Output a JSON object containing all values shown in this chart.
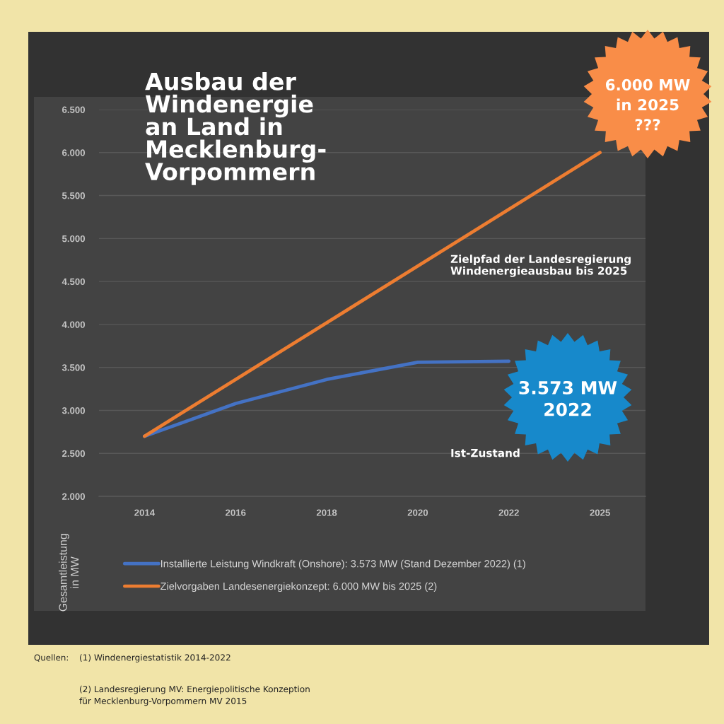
{
  "chart_data": {
    "type": "line",
    "title": "Ausbau der\nWindenergie\nan Land in\nMecklenburg-\nVorpommern",
    "ylabel": "Gesamtleistung\nin MW",
    "categories": [
      "2014",
      "2016",
      "2018",
      "2020",
      "2022",
      "2025"
    ],
    "series": [
      {
        "name": "Installierte Leistung Windkraft (Onshore): 3.573 MW (Stand Dezember 2022) (1)",
        "color": "#4472c4",
        "values": [
          2700,
          3080,
          3360,
          3560,
          3573,
          null
        ]
      },
      {
        "name": "Zielvorgaben Landesenergiekonzept: 6.000 MW bis 2025 (2)",
        "color": "#ed7d31",
        "values": [
          2700,
          3360,
          4020,
          4680,
          5340,
          6000
        ]
      }
    ],
    "ylim": [
      2000,
      6500
    ],
    "yticks": [
      {
        "value": 2000,
        "label": "2.000"
      },
      {
        "value": 2500,
        "label": "2.500"
      },
      {
        "value": 3000,
        "label": "3.000"
      },
      {
        "value": 3500,
        "label": "3.500"
      },
      {
        "value": 4000,
        "label": "4.000"
      },
      {
        "value": 4500,
        "label": "4.500"
      },
      {
        "value": 5000,
        "label": "5.000"
      },
      {
        "value": 5500,
        "label": "5.500"
      },
      {
        "value": 6000,
        "label": "6.000"
      },
      {
        "value": 6500,
        "label": "6.500"
      }
    ],
    "grid": "y",
    "legend": "bottom",
    "line_style": "solid",
    "annotations": [
      "6.000 MW\nin 2025\n???",
      "3.573 MW\n2022",
      "Zielpfad der Landesregierung\nWindenergieausbau bis 2025",
      "Ist-Zustand",
      "Quellen:",
      "(1) Windenergiestatistik 2014-2022",
      "(2) Landesregierung MV: Energiepolitische Konzeption\nfür Mecklenburg-Vorpommern MV 2015"
    ]
  }
}
